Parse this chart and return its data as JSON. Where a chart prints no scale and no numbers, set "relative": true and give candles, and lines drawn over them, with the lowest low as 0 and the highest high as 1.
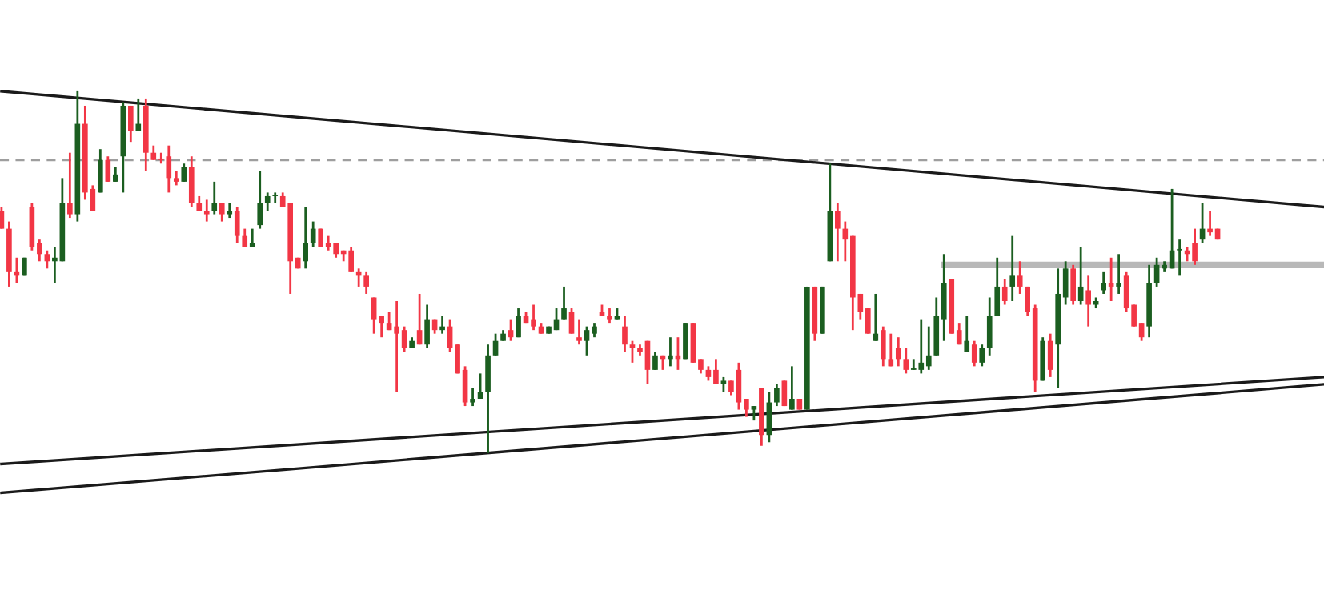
{
  "chart_data": {
    "type": "candlestick",
    "relative": true,
    "categories": [
      null,
      null,
      null,
      null,
      null,
      null,
      null,
      null,
      null,
      null,
      null,
      null,
      null,
      null,
      null,
      null,
      null,
      null,
      null,
      null,
      null,
      null,
      null,
      null,
      null,
      null,
      null,
      null,
      null,
      null,
      null,
      null,
      null,
      null,
      null,
      null,
      null,
      null,
      null,
      null,
      null,
      null,
      null,
      null,
      null,
      null,
      null,
      null,
      null,
      null,
      null,
      null,
      null,
      null,
      null,
      null,
      null,
      null,
      null,
      null,
      null,
      null,
      null,
      null,
      null,
      null,
      null,
      null,
      null,
      null,
      null,
      null,
      null,
      null,
      null,
      null,
      null,
      null,
      null,
      null,
      null,
      null,
      null,
      null,
      null,
      null,
      null,
      null,
      null,
      null,
      null,
      null,
      null,
      null,
      null,
      null,
      null,
      null,
      null,
      null,
      null,
      null,
      null,
      null,
      null,
      null,
      null,
      null,
      null,
      null,
      null,
      null,
      null,
      null,
      null,
      null,
      null,
      null,
      null,
      null,
      null,
      null,
      null,
      null,
      null,
      null,
      null,
      null,
      null,
      null,
      null,
      null,
      null,
      null,
      null,
      null,
      null,
      null,
      null,
      null,
      null,
      null,
      null,
      null,
      null,
      null,
      null,
      null,
      null,
      null,
      null,
      null,
      null,
      null,
      null,
      null,
      null,
      null,
      null,
      null,
      null,
      null,
      null,
      null,
      null,
      null,
      null,
      null,
      null,
      null,
      null,
      null,
      null,
      null,
      null
    ],
    "colors": [
      "#f23645",
      "#f23645",
      "#f23645",
      "#1b5e20",
      "#f23645",
      "#f23645",
      "#f23645",
      "#1b5e20",
      "#1b5e20",
      "#f23645",
      "#1b5e20",
      "#f23645",
      "#f23645",
      "#1b5e20",
      "#f23645",
      "#1b5e20",
      "#1b5e20",
      "#f23645",
      "#1b5e20",
      "#f23645",
      "#f23645",
      "#f23645",
      "#f23645",
      "#f23645",
      "#1b5e20",
      "#f23645",
      "#f23645",
      "#f23645",
      "#1b5e20",
      "#f23645",
      "#1b5e20",
      "#f23645",
      "#f23645",
      "#1b5e20",
      "#1b5e20",
      "#1b5e20",
      "#1b5e20",
      "#f23645",
      "#f23645",
      "#f23645",
      "#1b5e20",
      "#1b5e20",
      "#f23645",
      "#f23645",
      "#f23645",
      "#f23645",
      "#f23645",
      "#f23645",
      "#f23645",
      "#f23645",
      "#f23645",
      "#f23645",
      "#f23645",
      "#f23645",
      "#1b5e20",
      "#f23645",
      "#1b5e20",
      "#f23645",
      "#1b5e20",
      "#f23645",
      "#f23645",
      "#f23645",
      "#1b5e20",
      "#1b5e20",
      "#1b5e20",
      "#1b5e20",
      "#1b5e20",
      "#f23645",
      "#1b5e20",
      "#f23645",
      "#f23645",
      "#f23645",
      "#1b5e20",
      "#1b5e20",
      "#1b5e20",
      "#f23645",
      "#f23645",
      "#1b5e20",
      "#1b5e20",
      "#f23645",
      "#f23645",
      "#1b5e20",
      "#f23645",
      "#f23645",
      "#f23645",
      "#f23645",
      "#1b5e20",
      "#f23645",
      "#1b5e20",
      "#f23645",
      "#1b5e20",
      "#f23645",
      "#f23645",
      "#f23645",
      "#f23645",
      "#1b5e20",
      "#f23645",
      "#f23645",
      "#f23645",
      "#1b5e20",
      "#f23645",
      "#1b5e20",
      "#1b5e20",
      "#f23645",
      "#1b5e20",
      "#f23645",
      "#1b5e20",
      "#f23645",
      "#1b5e20",
      "#1b5e20",
      "#f23645",
      "#f23645",
      "#f23645",
      "#f23645",
      "#f23645",
      "#1b5e20",
      "#f23645",
      "#f23645",
      "#f23645",
      "#f23645",
      "#1b5e20",
      "#1b5e20",
      "#1b5e20",
      "#1b5e20",
      "#1b5e20",
      "#f23645",
      "#f23645",
      "#1b5e20",
      "#f23645",
      "#1b5e20",
      "#1b5e20",
      "#1b5e20",
      "#f23645",
      "#1b5e20",
      "#f23645",
      "#f23645",
      "#f23645",
      "#1b5e20",
      "#f23645",
      "#1b5e20",
      "#1b5e20",
      "#f23645",
      "#1b5e20",
      "#f23645",
      "#1b5e20",
      "#1b5e20",
      "#f23645",
      "#1b5e20",
      "#f23645",
      "#f23645",
      "#f23645",
      "#1b5e20",
      "#1b5e20",
      "#1b5e20",
      "#1b5e20",
      "#1b5e20",
      "#f23645",
      "#f23645",
      "#1b5e20",
      "#f23645",
      "#f23645",
      null,
      null,
      null,
      null,
      null,
      null,
      null,
      null,
      null,
      null,
      null,
      null,
      null,
      null
    ],
    "ohlc": [
      [
        0.67,
        0.68,
        0.62,
        0.62
      ],
      [
        0.62,
        0.64,
        0.46,
        0.5
      ],
      [
        0.5,
        0.54,
        0.47,
        0.49
      ],
      [
        0.49,
        0.54,
        0.49,
        0.54
      ],
      [
        0.68,
        0.69,
        0.56,
        0.57
      ],
      [
        0.58,
        0.59,
        0.53,
        0.55
      ],
      [
        0.55,
        0.56,
        0.51,
        0.53
      ],
      [
        0.53,
        0.57,
        0.47,
        0.54
      ],
      [
        0.53,
        0.76,
        0.53,
        0.69
      ],
      [
        0.69,
        0.83,
        0.65,
        0.66
      ],
      [
        0.66,
        1.0,
        0.64,
        0.91
      ],
      [
        0.91,
        0.96,
        0.7,
        0.72
      ],
      [
        0.73,
        0.74,
        0.67,
        0.67
      ],
      [
        0.72,
        0.84,
        0.72,
        0.81
      ],
      [
        0.81,
        0.82,
        0.75,
        0.75
      ],
      [
        0.75,
        0.79,
        0.75,
        0.77
      ],
      [
        0.82,
        0.97,
        0.72,
        0.96
      ],
      [
        0.96,
        0.96,
        0.86,
        0.89
      ],
      [
        0.89,
        0.98,
        0.89,
        0.91
      ],
      [
        0.96,
        0.98,
        0.78,
        0.83
      ],
      [
        0.83,
        0.85,
        0.81,
        0.81
      ],
      [
        0.81,
        0.83,
        0.8,
        0.81
      ],
      [
        0.82,
        0.85,
        0.72,
        0.76
      ],
      [
        0.76,
        0.78,
        0.74,
        0.75
      ],
      [
        0.75,
        0.8,
        0.75,
        0.79
      ],
      [
        0.79,
        0.82,
        0.68,
        0.69
      ],
      [
        0.69,
        0.71,
        0.67,
        0.67
      ],
      [
        0.67,
        0.7,
        0.64,
        0.66
      ],
      [
        0.67,
        0.75,
        0.66,
        0.69
      ],
      [
        0.69,
        0.69,
        0.64,
        0.66
      ],
      [
        0.66,
        0.69,
        0.65,
        0.67
      ],
      [
        0.67,
        0.68,
        0.58,
        0.6
      ],
      [
        0.6,
        0.62,
        0.57,
        0.57
      ],
      [
        0.57,
        0.62,
        0.57,
        0.58
      ],
      [
        0.63,
        0.78,
        0.62,
        0.69
      ],
      [
        0.69,
        0.72,
        0.67,
        0.71
      ],
      [
        0.71,
        0.72,
        0.69,
        0.71
      ],
      [
        0.71,
        0.72,
        0.68,
        0.68
      ],
      [
        0.69,
        0.69,
        0.44,
        0.53
      ],
      [
        0.54,
        0.54,
        0.51,
        0.51
      ],
      [
        0.53,
        0.68,
        0.51,
        0.58
      ],
      [
        0.58,
        0.64,
        0.57,
        0.62
      ],
      [
        0.62,
        0.62,
        0.57,
        0.57
      ],
      [
        0.58,
        0.6,
        0.56,
        0.57
      ],
      [
        0.58,
        0.58,
        0.54,
        0.55
      ],
      [
        0.56,
        0.56,
        0.53,
        0.55
      ],
      [
        0.56,
        0.57,
        0.5,
        0.5
      ],
      [
        0.5,
        0.51,
        0.46,
        0.49
      ],
      [
        0.49,
        0.5,
        0.44,
        0.46
      ],
      [
        0.43,
        0.43,
        0.33,
        0.37
      ],
      [
        0.38,
        0.38,
        0.32,
        0.36
      ],
      [
        0.36,
        0.39,
        0.34,
        0.34
      ],
      [
        0.35,
        0.42,
        0.17,
        0.33
      ],
      [
        0.34,
        0.35,
        0.28,
        0.29
      ],
      [
        0.29,
        0.32,
        0.29,
        0.31
      ],
      [
        0.34,
        0.44,
        0.3,
        0.3
      ],
      [
        0.3,
        0.41,
        0.29,
        0.37
      ],
      [
        0.37,
        0.37,
        0.33,
        0.34
      ],
      [
        0.34,
        0.38,
        0.33,
        0.35
      ],
      [
        0.35,
        0.37,
        0.28,
        0.29
      ],
      [
        0.3,
        0.3,
        0.22,
        0.22
      ],
      [
        0.23,
        0.24,
        0.13,
        0.14
      ],
      [
        0.14,
        0.18,
        0.13,
        0.15
      ],
      [
        0.15,
        0.22,
        0.15,
        0.17
      ],
      [
        0.17,
        0.3,
        0.0,
        0.27
      ],
      [
        0.27,
        0.33,
        0.27,
        0.31
      ],
      [
        0.31,
        0.34,
        0.31,
        0.33
      ],
      [
        0.34,
        0.37,
        0.31,
        0.32
      ],
      [
        0.32,
        0.4,
        0.32,
        0.38
      ],
      [
        0.38,
        0.39,
        0.36,
        0.36
      ],
      [
        0.37,
        0.41,
        0.34,
        0.35
      ],
      [
        0.35,
        0.36,
        0.33,
        0.33
      ],
      [
        0.33,
        0.35,
        0.33,
        0.35
      ],
      [
        0.34,
        0.4,
        0.34,
        0.37
      ],
      [
        0.37,
        0.46,
        0.37,
        0.4
      ],
      [
        0.39,
        0.4,
        0.33,
        0.33
      ],
      [
        0.32,
        0.37,
        0.3,
        0.31
      ],
      [
        0.31,
        0.35,
        0.27,
        0.34
      ],
      [
        0.33,
        0.36,
        0.32,
        0.35
      ],
      [
        0.39,
        0.41,
        0.38,
        0.38
      ],
      [
        0.38,
        0.4,
        0.36,
        0.37
      ],
      [
        0.37,
        0.4,
        0.37,
        0.38
      ],
      [
        0.35,
        0.38,
        0.28,
        0.3
      ],
      [
        0.3,
        0.31,
        0.25,
        0.29
      ],
      [
        0.29,
        0.3,
        0.27,
        0.28
      ],
      [
        0.31,
        0.31,
        0.19,
        0.23
      ],
      [
        0.23,
        0.28,
        0.23,
        0.27
      ],
      [
        0.27,
        0.27,
        0.23,
        0.26
      ],
      [
        0.26,
        0.32,
        0.24,
        0.27
      ],
      [
        0.27,
        0.32,
        0.23,
        0.26
      ],
      [
        0.26,
        0.36,
        0.26,
        0.36
      ],
      [
        0.36,
        0.36,
        0.25,
        0.25
      ],
      [
        0.26,
        0.26,
        0.22,
        0.23
      ],
      [
        0.23,
        0.24,
        0.2,
        0.21
      ],
      [
        0.23,
        0.26,
        0.19,
        0.19
      ],
      [
        0.19,
        0.21,
        0.17,
        0.2
      ],
      [
        0.2,
        0.2,
        0.16,
        0.17
      ],
      [
        0.23,
        0.25,
        0.12,
        0.14
      ],
      [
        0.15,
        0.15,
        0.1,
        0.12
      ],
      [
        0.12,
        0.13,
        0.09,
        0.13
      ],
      [
        0.18,
        0.18,
        0.02,
        0.05
      ],
      [
        0.05,
        0.17,
        0.03,
        0.14
      ],
      [
        0.14,
        0.19,
        0.13,
        0.18
      ],
      [
        0.2,
        0.2,
        0.13,
        0.13
      ],
      [
        0.12,
        0.24,
        0.12,
        0.15
      ],
      [
        0.15,
        0.15,
        0.12,
        0.12
      ],
      [
        0.12,
        0.46,
        0.12,
        0.46
      ],
      [
        0.46,
        0.46,
        0.31,
        0.33
      ],
      [
        0.33,
        0.46,
        0.33,
        0.46
      ],
      [
        0.53,
        0.8,
        0.53,
        0.67
      ],
      [
        0.67,
        0.69,
        0.53,
        0.62
      ],
      [
        0.62,
        0.64,
        0.53,
        0.59
      ],
      [
        0.6,
        0.6,
        0.34,
        0.43
      ],
      [
        0.44,
        0.44,
        0.37,
        0.39
      ],
      [
        0.4,
        0.4,
        0.33,
        0.33
      ],
      [
        0.31,
        0.44,
        0.31,
        0.33
      ],
      [
        0.34,
        0.35,
        0.24,
        0.26
      ],
      [
        0.26,
        0.33,
        0.24,
        0.24
      ],
      [
        0.29,
        0.32,
        0.24,
        0.26
      ],
      [
        0.26,
        0.29,
        0.22,
        0.23
      ],
      [
        0.23,
        0.26,
        0.23,
        0.23
      ],
      [
        0.23,
        0.37,
        0.22,
        0.25
      ],
      [
        0.24,
        0.35,
        0.23,
        0.27
      ],
      [
        0.27,
        0.43,
        0.27,
        0.38
      ],
      [
        0.37,
        0.55,
        0.31,
        0.47
      ],
      [
        0.48,
        0.48,
        0.33,
        0.33
      ],
      [
        0.34,
        0.36,
        0.3,
        0.3
      ],
      [
        0.28,
        0.38,
        0.28,
        0.31
      ],
      [
        0.3,
        0.31,
        0.24,
        0.25
      ],
      [
        0.25,
        0.3,
        0.24,
        0.29
      ],
      [
        0.29,
        0.43,
        0.27,
        0.38
      ],
      [
        0.38,
        0.54,
        0.38,
        0.46
      ],
      [
        0.46,
        0.48,
        0.41,
        0.42
      ],
      [
        0.46,
        0.6,
        0.42,
        0.49
      ],
      [
        0.49,
        0.53,
        0.44,
        0.46
      ],
      [
        0.46,
        0.46,
        0.38,
        0.39
      ],
      [
        0.4,
        0.41,
        0.17,
        0.2
      ],
      [
        0.2,
        0.32,
        0.2,
        0.31
      ],
      [
        0.31,
        0.33,
        0.21,
        0.23
      ],
      [
        0.3,
        0.51,
        0.18,
        0.44
      ],
      [
        0.43,
        0.53,
        0.41,
        0.51
      ],
      [
        0.51,
        0.52,
        0.41,
        0.42
      ],
      [
        0.42,
        0.57,
        0.41,
        0.46
      ],
      [
        0.45,
        0.49,
        0.35,
        0.41
      ],
      [
        0.41,
        0.43,
        0.4,
        0.42
      ],
      [
        0.45,
        0.5,
        0.44,
        0.47
      ],
      [
        0.47,
        0.54,
        0.42,
        0.46
      ],
      [
        0.46,
        0.55,
        0.44,
        0.47
      ],
      [
        0.49,
        0.5,
        0.39,
        0.4
      ],
      [
        0.41,
        0.41,
        0.35,
        0.35
      ],
      [
        0.36,
        0.36,
        0.31,
        0.32
      ],
      [
        0.35,
        0.52,
        0.32,
        0.47
      ],
      [
        0.47,
        0.54,
        0.46,
        0.52
      ],
      [
        0.51,
        0.53,
        0.5,
        0.52
      ],
      [
        0.51,
        0.73,
        0.51,
        0.56
      ],
      [
        0.56,
        0.59,
        0.49,
        0.56
      ],
      [
        0.56,
        0.57,
        0.53,
        0.55
      ],
      [
        0.58,
        0.62,
        0.52,
        0.53
      ],
      [
        0.59,
        0.69,
        0.58,
        0.62
      ],
      [
        0.62,
        0.67,
        0.6,
        0.61
      ],
      [
        0.62,
        0.62,
        0.59,
        0.59
      ],
      null,
      null,
      null,
      null,
      null,
      null,
      null,
      null,
      null,
      null,
      null,
      null,
      null,
      null
    ],
    "series": [
      {
        "type": "line",
        "color": "#1a1a1a",
        "values": [
          1.0,
          null,
          null,
          null,
          null,
          null,
          null,
          null,
          null,
          null,
          null,
          null,
          null,
          null,
          null,
          null,
          null,
          null,
          null,
          null,
          null,
          null,
          null,
          null,
          null,
          null,
          null,
          null,
          null,
          null,
          null,
          null,
          null,
          null,
          null,
          null,
          null,
          null,
          null,
          null,
          null,
          null,
          null,
          null,
          null,
          null,
          null,
          null,
          null,
          null,
          null,
          null,
          null,
          null,
          null,
          null,
          null,
          null,
          null,
          null,
          null,
          null,
          null,
          null,
          null,
          null,
          null,
          null,
          null,
          null,
          null,
          null,
          null,
          null,
          null,
          null,
          null,
          null,
          null,
          null,
          null,
          null,
          null,
          null,
          null,
          null,
          null,
          null,
          null,
          null,
          null,
          null,
          null,
          null,
          null,
          null,
          null,
          null,
          null,
          null,
          null,
          null,
          null,
          null,
          null,
          null,
          null,
          null,
          null,
          null,
          null,
          null,
          null,
          null,
          null,
          null,
          null,
          null,
          null,
          null,
          null,
          null,
          null,
          null,
          null,
          null,
          null,
          null,
          null,
          null,
          null,
          null,
          null,
          null,
          null,
          null,
          null,
          null,
          null,
          null,
          null,
          null,
          null,
          null,
          null,
          null,
          null,
          null,
          null,
          null,
          null,
          null,
          null,
          null,
          null,
          null,
          null,
          null,
          null,
          null,
          null,
          null,
          null,
          null,
          null,
          null,
          null,
          null,
          null,
          null,
          null,
          null,
          null,
          null,
          0.68
        ]
      },
      {
        "type": "line",
        "color": "#1a1a1a",
        "values": [
          -0.03,
          null,
          null,
          null,
          null,
          null,
          null,
          null,
          null,
          null,
          null,
          null,
          null,
          null,
          null,
          null,
          null,
          null,
          null,
          null,
          null,
          null,
          null,
          null,
          null,
          null,
          null,
          null,
          null,
          null,
          null,
          null,
          null,
          null,
          null,
          null,
          null,
          null,
          null,
          null,
          null,
          null,
          null,
          null,
          null,
          null,
          null,
          null,
          null,
          null,
          null,
          null,
          null,
          null,
          null,
          null,
          null,
          null,
          null,
          null,
          null,
          null,
          null,
          null,
          null,
          null,
          null,
          null,
          null,
          null,
          null,
          null,
          null,
          null,
          null,
          null,
          null,
          null,
          null,
          null,
          null,
          null,
          null,
          null,
          null,
          null,
          null,
          null,
          null,
          null,
          null,
          null,
          null,
          null,
          null,
          null,
          null,
          null,
          null,
          null,
          null,
          null,
          null,
          null,
          null,
          null,
          null,
          null,
          null,
          null,
          null,
          null,
          null,
          null,
          null,
          null,
          null,
          null,
          null,
          null,
          null,
          null,
          null,
          null,
          null,
          null,
          null,
          null,
          null,
          null,
          null,
          null,
          null,
          null,
          null,
          null,
          null,
          null,
          null,
          null,
          null,
          null,
          null,
          null,
          null,
          null,
          null,
          null,
          null,
          null,
          null,
          null,
          null,
          null,
          null,
          null,
          null,
          null,
          null,
          null,
          null,
          null,
          null,
          null,
          null,
          null,
          null,
          null,
          null,
          null,
          null,
          null,
          null,
          null,
          0.21
        ]
      },
      {
        "type": "line",
        "color": "#1a1a1a",
        "values": [
          -0.11,
          null,
          null,
          null,
          null,
          null,
          null,
          null,
          null,
          null,
          null,
          null,
          null,
          null,
          null,
          null,
          null,
          null,
          null,
          null,
          null,
          null,
          null,
          null,
          null,
          null,
          null,
          null,
          null,
          null,
          null,
          null,
          null,
          null,
          null,
          null,
          null,
          null,
          null,
          null,
          null,
          null,
          null,
          null,
          null,
          null,
          null,
          null,
          null,
          null,
          null,
          null,
          null,
          null,
          null,
          null,
          null,
          null,
          null,
          null,
          null,
          null,
          null,
          null,
          null,
          null,
          null,
          null,
          null,
          null,
          null,
          null,
          null,
          null,
          null,
          null,
          null,
          null,
          null,
          null,
          null,
          null,
          null,
          null,
          null,
          null,
          null,
          null,
          null,
          null,
          null,
          null,
          null,
          null,
          null,
          null,
          null,
          null,
          null,
          null,
          null,
          null,
          null,
          null,
          null,
          null,
          null,
          null,
          null,
          null,
          null,
          null,
          null,
          null,
          null,
          null,
          null,
          null,
          null,
          null,
          null,
          null,
          null,
          null,
          null,
          null,
          null,
          null,
          null,
          null,
          null,
          null,
          null,
          null,
          null,
          null,
          null,
          null,
          null,
          null,
          null,
          null,
          null,
          null,
          null,
          null,
          null,
          null,
          null,
          null,
          null,
          null,
          null,
          null,
          null,
          null,
          null,
          null,
          null,
          null,
          null,
          null,
          null,
          null,
          null,
          null,
          null,
          null,
          null,
          null,
          null,
          null,
          null,
          null,
          0.19
        ]
      },
      {
        "type": "line",
        "color": "#b8b8b8",
        "values": [
          null,
          null,
          null,
          null,
          null,
          null,
          null,
          null,
          null,
          null,
          null,
          null,
          null,
          null,
          null,
          null,
          null,
          null,
          null,
          null,
          null,
          null,
          null,
          null,
          null,
          null,
          null,
          null,
          null,
          null,
          null,
          null,
          null,
          null,
          null,
          null,
          null,
          null,
          null,
          null,
          null,
          null,
          null,
          null,
          null,
          null,
          null,
          null,
          null,
          null,
          null,
          null,
          null,
          null,
          null,
          null,
          null,
          null,
          null,
          null,
          null,
          null,
          null,
          null,
          null,
          null,
          null,
          null,
          null,
          null,
          null,
          null,
          null,
          null,
          null,
          null,
          null,
          null,
          null,
          null,
          null,
          null,
          null,
          null,
          null,
          null,
          null,
          null,
          null,
          null,
          null,
          null,
          null,
          null,
          null,
          null,
          null,
          null,
          null,
          null,
          null,
          null,
          null,
          null,
          null,
          null,
          null,
          null,
          null,
          null,
          null,
          null,
          null,
          null,
          null,
          null,
          null,
          null,
          null,
          null,
          null,
          null,
          null,
          null,
          0.52,
          null,
          null,
          null,
          null,
          null,
          null,
          null,
          null,
          null,
          null,
          null,
          null,
          null,
          null,
          null,
          null,
          null,
          null,
          null,
          null,
          null,
          null,
          null,
          null,
          null,
          null,
          null,
          null,
          null,
          null,
          null,
          null,
          null,
          null,
          null,
          null,
          null,
          null,
          null,
          null,
          null,
          null,
          null,
          null,
          null,
          null,
          null,
          null,
          null,
          0.52
        ]
      }
    ],
    "ref_lines": [
      {
        "axis": "y",
        "value": 0.81,
        "color": "#9e9e9e",
        "line_style": "dashed"
      }
    ]
  }
}
